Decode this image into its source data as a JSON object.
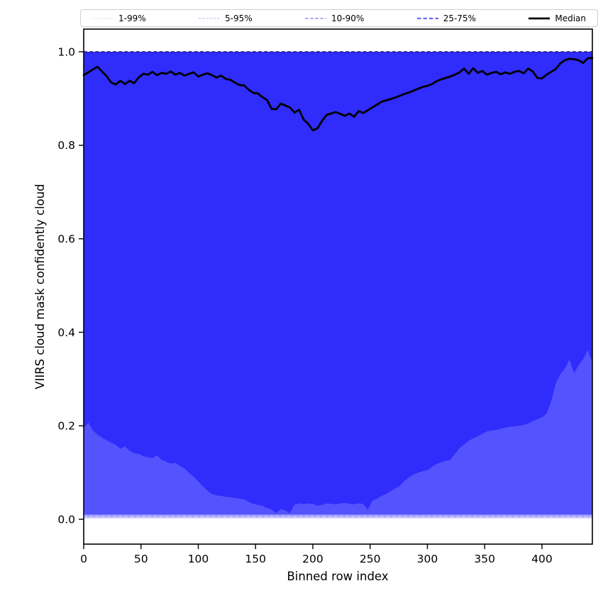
{
  "figure": {
    "xlabel": "Binned row index",
    "ylabel": "VIIRS cloud mask confidently cloud"
  },
  "legend": {
    "items": [
      {
        "label": "1-99%",
        "color": "#dcdbf5",
        "dash": "3,2.2",
        "width": 1.1
      },
      {
        "label": "5-95%",
        "color": "#b3b2f0",
        "dash": "3,2.2",
        "width": 1.1
      },
      {
        "label": "10-90%",
        "color": "#8f8df2",
        "dash": "4.5,2.6",
        "width": 1.4
      },
      {
        "label": "25-75%",
        "color": "#6f6cee",
        "dash": "5.5,3",
        "width": 2.2
      },
      {
        "label": "Median",
        "color": "#000000",
        "dash": "",
        "width": 2.8
      }
    ]
  },
  "chart_data": {
    "type": "area",
    "subtype": "percentile-fan-chart",
    "title": "",
    "xlabel": "Binned row index",
    "ylabel": "VIIRS cloud mask confidently cloud",
    "xlim": [
      0,
      444
    ],
    "ylim": [
      -0.05,
      1.05
    ],
    "grid": false,
    "legend_position": "top",
    "band_color": "#2b28fc",
    "band_alphas": {
      "p1_99": 0.15,
      "p5_95": 0.35,
      "p10_90": 0.64,
      "p25_75": 0.9
    },
    "median_color": "#000000",
    "xticks": {
      "values": [
        0,
        50,
        100,
        150,
        200,
        250,
        300,
        350,
        400
      ],
      "labels": [
        "0",
        "50",
        "100",
        "150",
        "200",
        "250",
        "300",
        "350",
        "400"
      ]
    },
    "yticks": {
      "values": [
        0.0,
        0.2,
        0.4,
        0.6,
        0.8,
        1.0
      ],
      "labels": [
        "0.0",
        "0.2",
        "0.4",
        "0.6",
        "0.8",
        "1.0"
      ]
    },
    "x": [
      0,
      4,
      8,
      12,
      16,
      20,
      24,
      28,
      32,
      36,
      40,
      44,
      48,
      52,
      56,
      60,
      64,
      68,
      72,
      76,
      80,
      84,
      88,
      92,
      96,
      100,
      104,
      108,
      112,
      116,
      120,
      124,
      128,
      132,
      136,
      140,
      144,
      148,
      152,
      156,
      160,
      164,
      168,
      172,
      176,
      180,
      184,
      188,
      192,
      196,
      200,
      204,
      208,
      212,
      216,
      220,
      224,
      228,
      232,
      236,
      240,
      244,
      248,
      252,
      256,
      260,
      264,
      268,
      272,
      276,
      280,
      284,
      288,
      292,
      296,
      300,
      304,
      308,
      312,
      316,
      320,
      324,
      328,
      332,
      336,
      340,
      344,
      348,
      352,
      356,
      360,
      364,
      368,
      372,
      376,
      380,
      384,
      388,
      392,
      396,
      400,
      404,
      408,
      412,
      416,
      420,
      424,
      428,
      432,
      436,
      440,
      444
    ],
    "series": [
      {
        "name": "p01",
        "constant": 0.001
      },
      {
        "name": "p05",
        "constant": 0.004
      },
      {
        "name": "p10",
        "constant": 0.01
      },
      {
        "name": "p25",
        "values": [
          0.195,
          0.207,
          0.19,
          0.181,
          0.175,
          0.169,
          0.164,
          0.159,
          0.151,
          0.156,
          0.147,
          0.141,
          0.14,
          0.135,
          0.133,
          0.131,
          0.137,
          0.127,
          0.123,
          0.119,
          0.121,
          0.114,
          0.109,
          0.099,
          0.091,
          0.081,
          0.071,
          0.061,
          0.054,
          0.051,
          0.05,
          0.048,
          0.047,
          0.046,
          0.044,
          0.043,
          0.037,
          0.033,
          0.031,
          0.029,
          0.024,
          0.021,
          0.013,
          0.022,
          0.019,
          0.013,
          0.031,
          0.034,
          0.032,
          0.034,
          0.033,
          0.029,
          0.031,
          0.034,
          0.033,
          0.032,
          0.034,
          0.035,
          0.033,
          0.032,
          0.034,
          0.033,
          0.02,
          0.04,
          0.044,
          0.05,
          0.054,
          0.06,
          0.066,
          0.072,
          0.082,
          0.09,
          0.096,
          0.1,
          0.103,
          0.105,
          0.112,
          0.118,
          0.122,
          0.125,
          0.127,
          0.14,
          0.152,
          0.16,
          0.168,
          0.173,
          0.178,
          0.183,
          0.188,
          0.19,
          0.191,
          0.194,
          0.196,
          0.198,
          0.199,
          0.2,
          0.202,
          0.205,
          0.21,
          0.214,
          0.218,
          0.226,
          0.252,
          0.29,
          0.31,
          0.322,
          0.342,
          0.312,
          0.33,
          0.342,
          0.362,
          0.335
        ]
      },
      {
        "name": "median",
        "values": [
          0.95,
          0.956,
          0.962,
          0.968,
          0.958,
          0.948,
          0.934,
          0.93,
          0.938,
          0.931,
          0.938,
          0.933,
          0.945,
          0.953,
          0.951,
          0.957,
          0.95,
          0.955,
          0.953,
          0.958,
          0.951,
          0.955,
          0.949,
          0.953,
          0.956,
          0.947,
          0.951,
          0.954,
          0.95,
          0.945,
          0.949,
          0.942,
          0.94,
          0.934,
          0.929,
          0.928,
          0.919,
          0.912,
          0.911,
          0.903,
          0.897,
          0.878,
          0.877,
          0.889,
          0.885,
          0.881,
          0.87,
          0.876,
          0.855,
          0.846,
          0.832,
          0.836,
          0.852,
          0.865,
          0.868,
          0.871,
          0.867,
          0.863,
          0.868,
          0.861,
          0.873,
          0.869,
          0.875,
          0.881,
          0.887,
          0.893,
          0.896,
          0.899,
          0.902,
          0.906,
          0.91,
          0.913,
          0.917,
          0.921,
          0.925,
          0.927,
          0.931,
          0.937,
          0.941,
          0.944,
          0.947,
          0.951,
          0.956,
          0.964,
          0.953,
          0.965,
          0.955,
          0.959,
          0.951,
          0.955,
          0.957,
          0.952,
          0.956,
          0.953,
          0.957,
          0.959,
          0.954,
          0.964,
          0.958,
          0.944,
          0.943,
          0.951,
          0.957,
          0.963,
          0.975,
          0.982,
          0.985,
          0.984,
          0.982,
          0.976,
          0.986,
          0.987
        ]
      },
      {
        "name": "p75",
        "constant": 1.0
      },
      {
        "name": "p90",
        "constant": 1.0
      },
      {
        "name": "p95",
        "constant": 1.0
      },
      {
        "name": "p99",
        "constant": 1.0
      }
    ],
    "reference_lines": [
      {
        "y": 1.0,
        "style": "dashed",
        "color": "#1a1960",
        "width": 1.5
      },
      {
        "y": 0.006,
        "style": "dashed",
        "color": "#c9c8fb",
        "width": 1.5
      }
    ]
  }
}
